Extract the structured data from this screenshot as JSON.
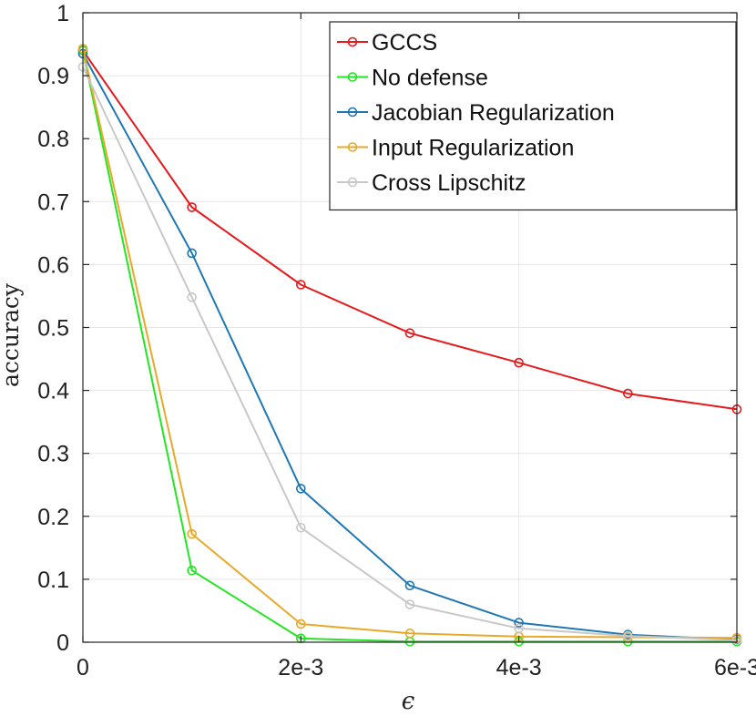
{
  "chart_data": {
    "type": "line",
    "title": "",
    "xlabel": "ϵ",
    "ylabel": "accuracy",
    "x": [
      0,
      0.001,
      0.002,
      0.003,
      0.004,
      0.005,
      0.006
    ],
    "xlim": [
      0,
      0.006
    ],
    "ylim": [
      0,
      1
    ],
    "xticks": [
      0,
      0.002,
      0.004,
      0.006
    ],
    "xtick_labels": [
      "0",
      "2e-3",
      "4e-3",
      "6e-3"
    ],
    "yticks": [
      0,
      0.1,
      0.2,
      0.3,
      0.4,
      0.5,
      0.6,
      0.7,
      0.8,
      0.9,
      1
    ],
    "ytick_labels": [
      "0",
      "0.1",
      "0.2",
      "0.3",
      "0.4",
      "0.5",
      "0.6",
      "0.7",
      "0.8",
      "0.9",
      "1"
    ],
    "grid": true,
    "legend_position": "top-right",
    "series": [
      {
        "name": "GCCS",
        "color": "#e41a1c",
        "values": [
          0.94,
          0.691,
          0.568,
          0.491,
          0.444,
          0.395,
          0.37
        ]
      },
      {
        "name": "No defense",
        "color": "#22e622",
        "values": [
          0.94,
          0.114,
          0.006,
          0.001,
          0.001,
          0.001,
          0.001
        ]
      },
      {
        "name": "Jacobian Regularization",
        "color": "#1f77b4",
        "values": [
          0.935,
          0.618,
          0.244,
          0.09,
          0.031,
          0.012,
          0.004
        ]
      },
      {
        "name": "Input Regularization",
        "color": "#e8a92a",
        "values": [
          0.943,
          0.172,
          0.029,
          0.014,
          0.009,
          0.008,
          0.007
        ]
      },
      {
        "name": "Cross Lipschitz",
        "color": "#c8c8c8",
        "values": [
          0.914,
          0.548,
          0.182,
          0.06,
          0.022,
          0.01,
          0.003
        ]
      }
    ]
  }
}
